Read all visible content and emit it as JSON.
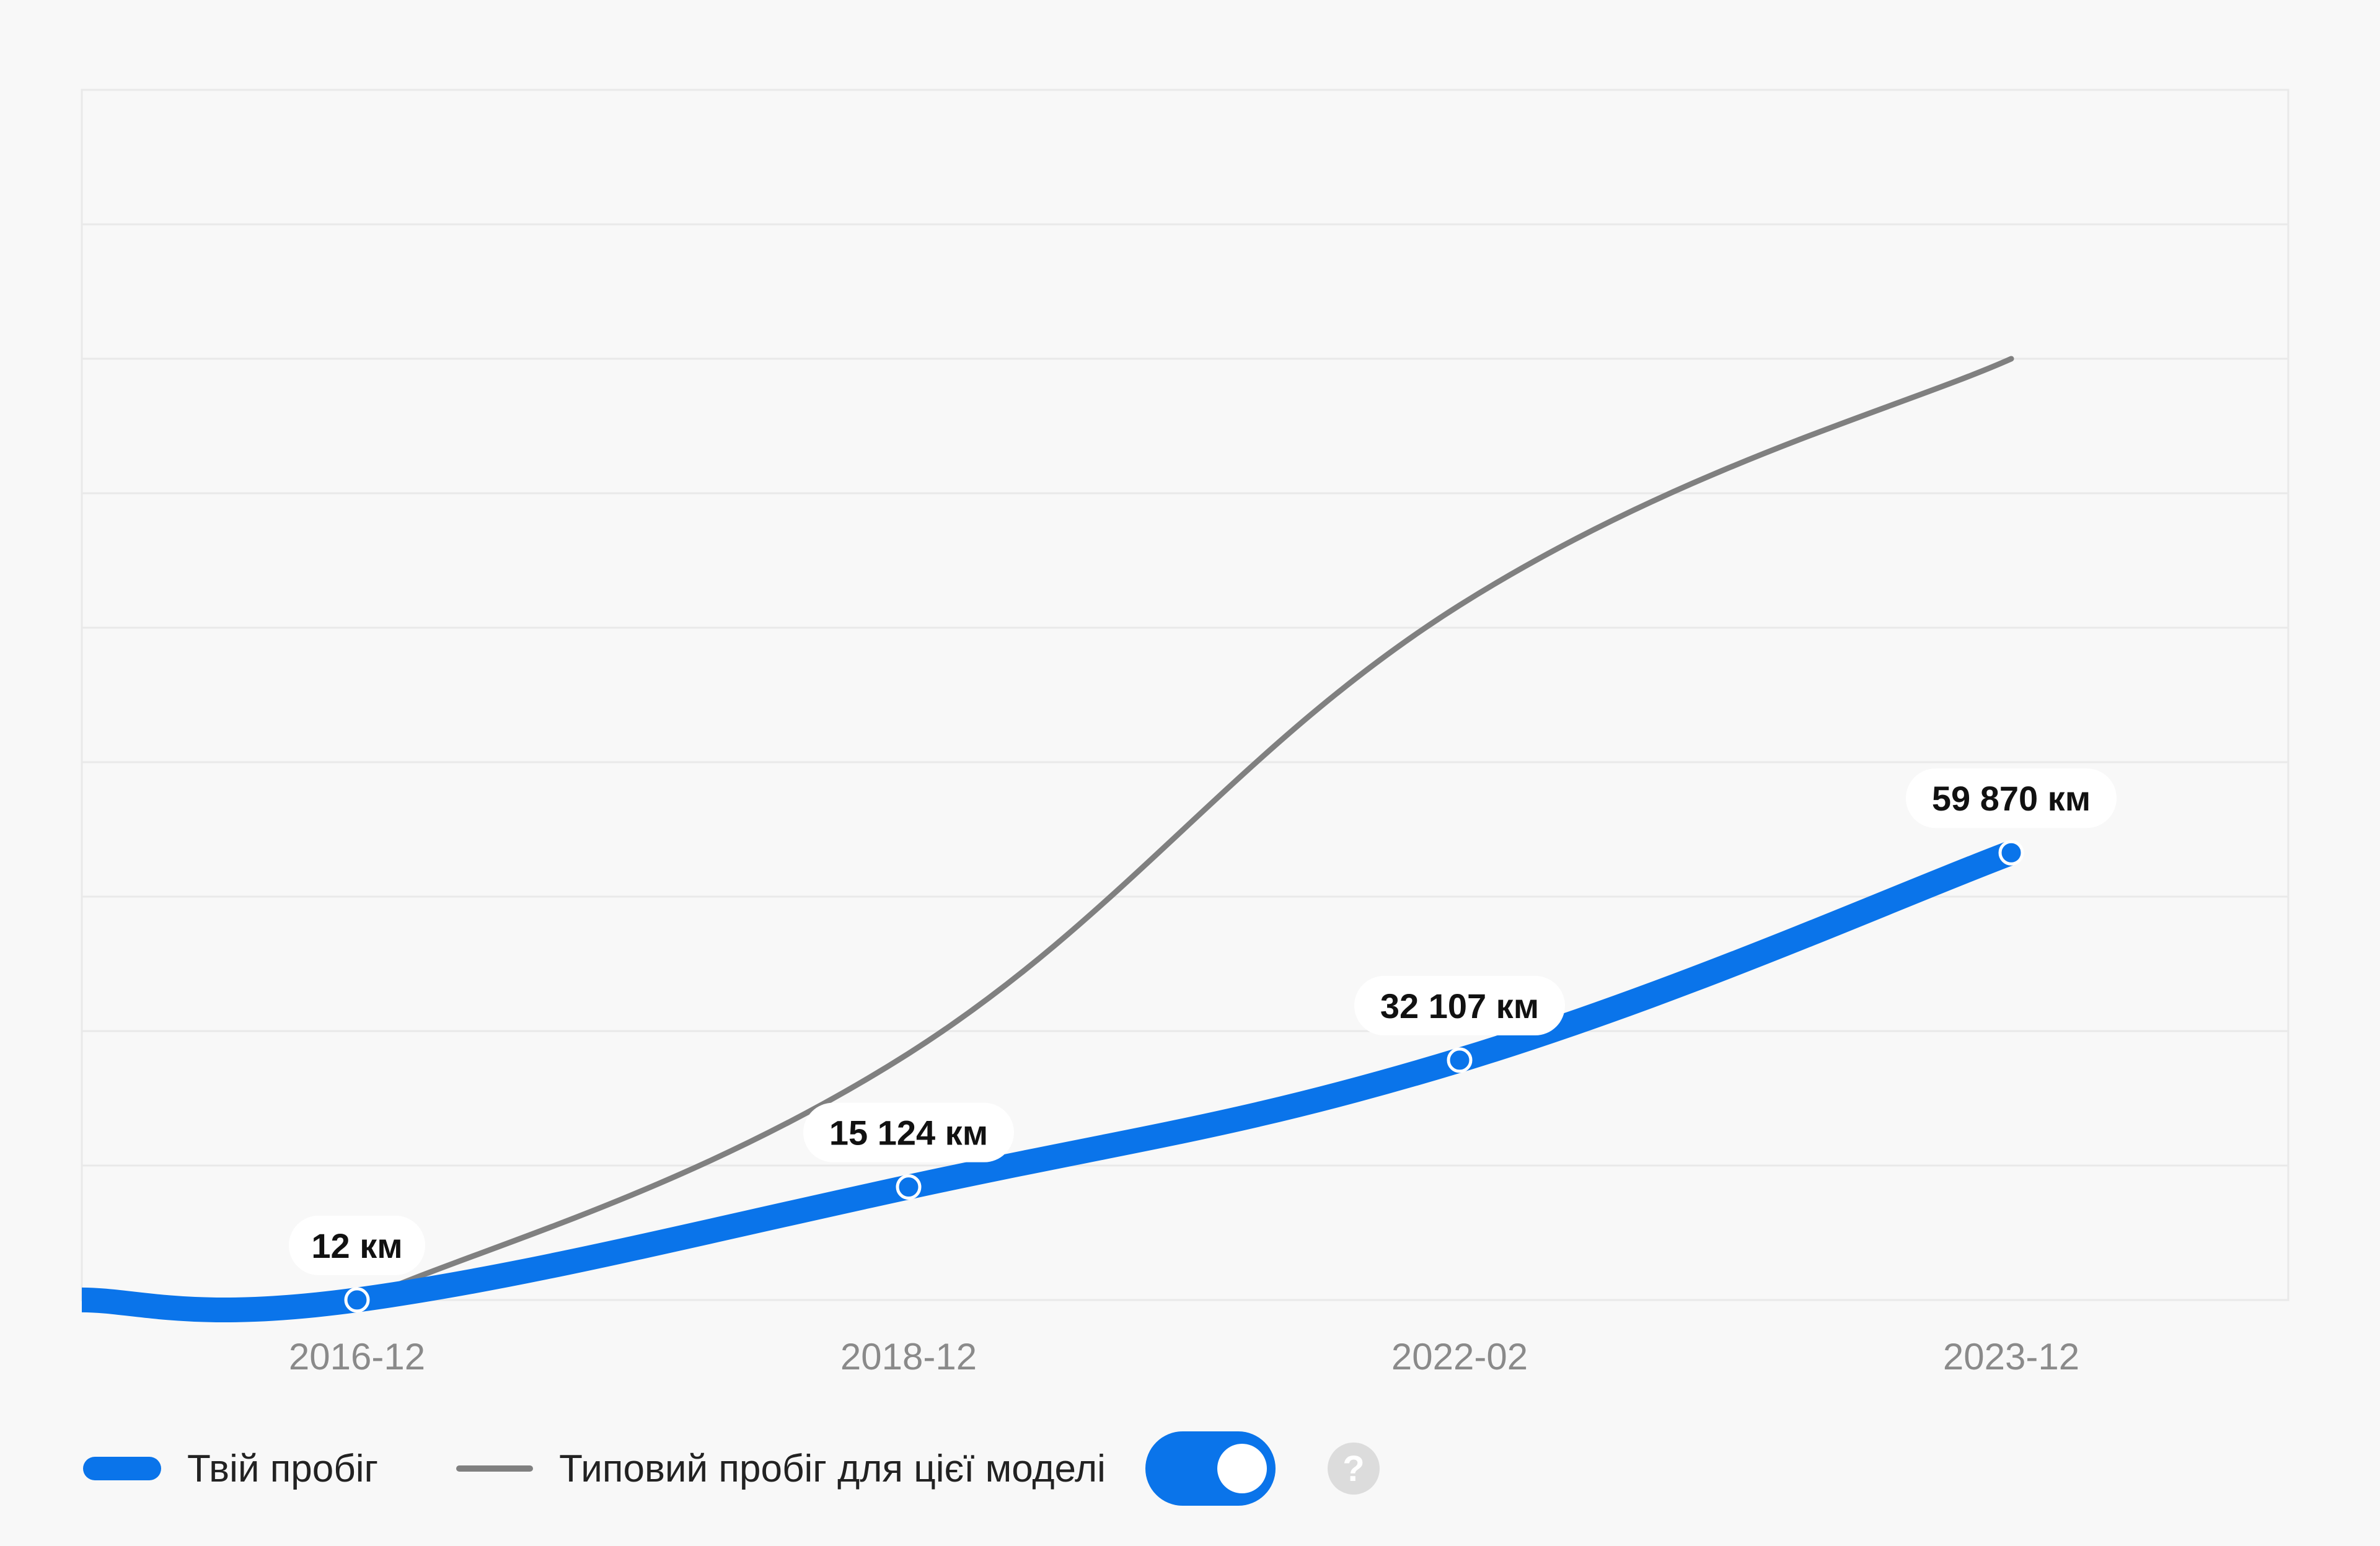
{
  "chart_data": {
    "type": "line",
    "categories": [
      "2016-12",
      "2018-12",
      "2022-02",
      "2023-12"
    ],
    "series": [
      {
        "name": "Твій пробіг",
        "color": "#0a74ea",
        "values": [
          12,
          15124,
          32107,
          59870
        ],
        "value_labels": [
          "12 км",
          "15 124 км",
          "32 107 км",
          "59 870 км"
        ]
      },
      {
        "name": "Типовий пробіг для цієї моделі",
        "color": "#808080",
        "values": [
          0,
          33000,
          93000,
          126000
        ]
      }
    ],
    "ylim": [
      0,
      162000
    ],
    "grid": true,
    "legend_position": "bottom-left"
  },
  "legend": {
    "mine_label": "Твій пробіг",
    "typical_label": "Типовий пробіг для цієї моделі",
    "toggle_on": true,
    "help_symbol": "?"
  },
  "colors": {
    "accent": "#0a74ea",
    "typical": "#808080",
    "grid": "#e9e9e9",
    "background": "#f8f8f8"
  }
}
